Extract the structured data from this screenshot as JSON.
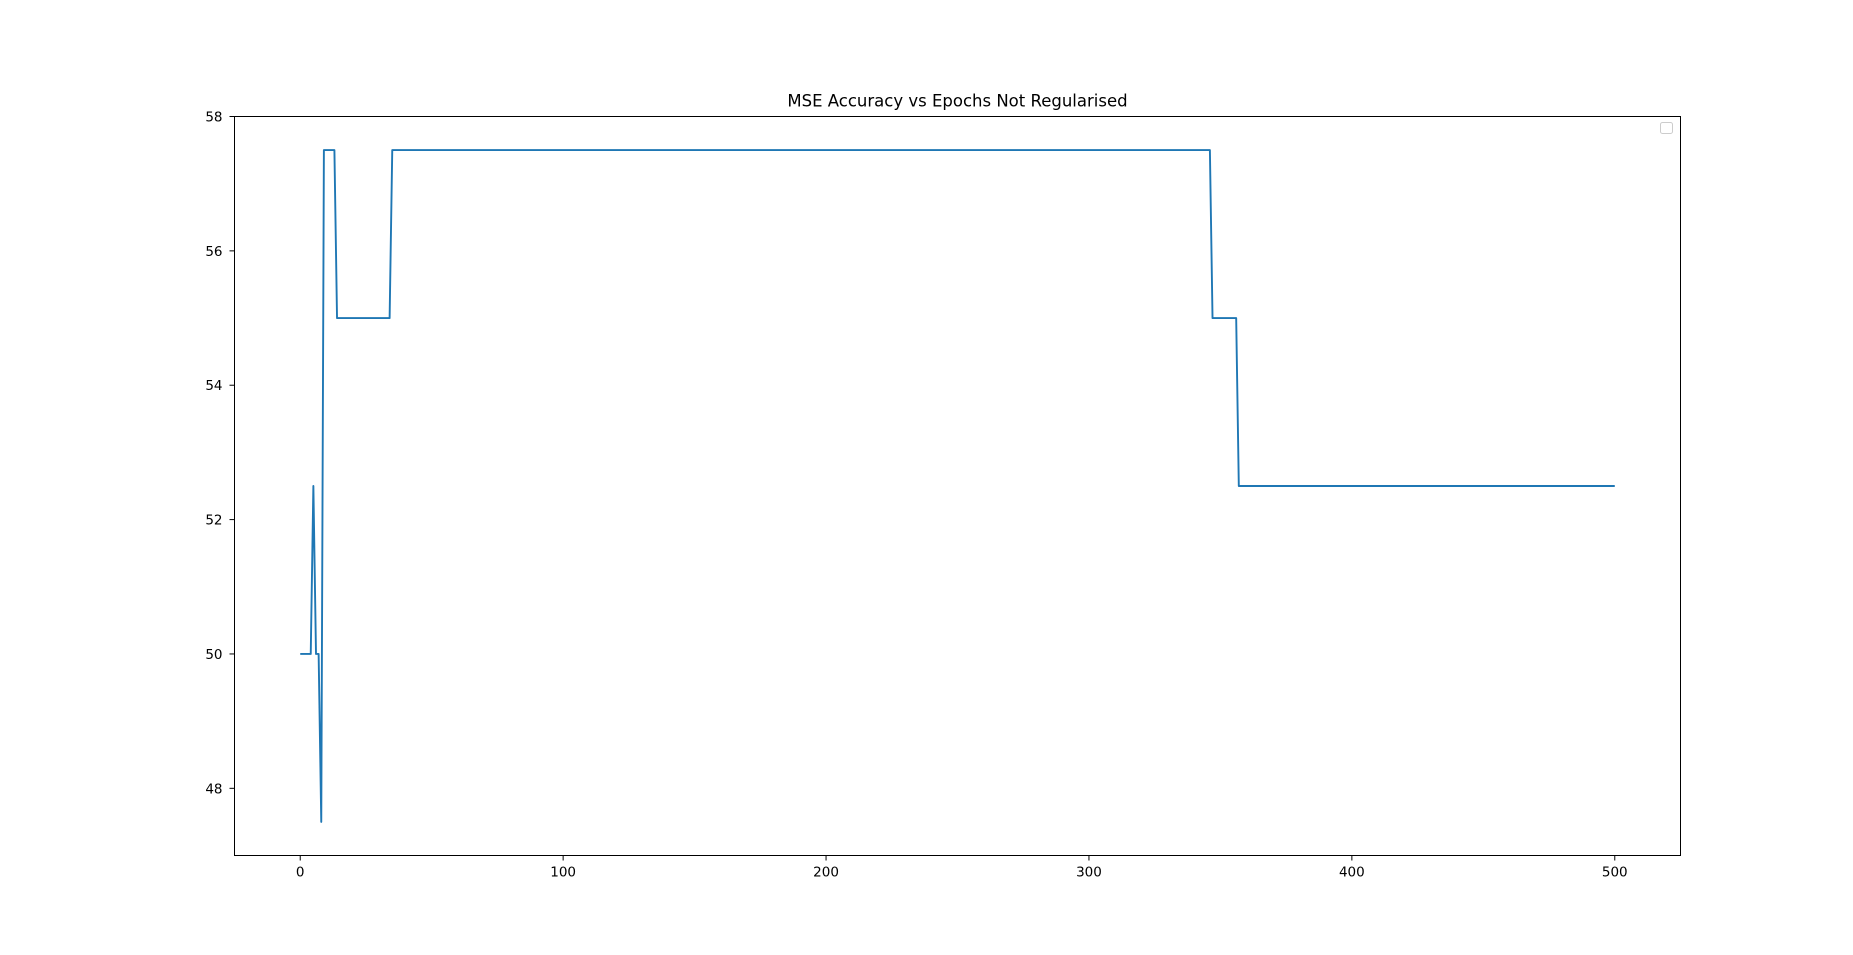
{
  "chart_data": {
    "type": "line",
    "title": "MSE Accuracy vs Epochs Not Regularised",
    "xlabel": "",
    "ylabel": "",
    "xlim": [
      -25,
      525
    ],
    "ylim": [
      47,
      58
    ],
    "x_ticks": [
      0,
      100,
      200,
      300,
      400,
      500
    ],
    "y_ticks": [
      48,
      50,
      52,
      54,
      56,
      58
    ],
    "grid": false,
    "legend": {
      "placement": "top-right",
      "entries": []
    },
    "line_color": "#1f77b4",
    "series": [
      {
        "x": [
          0,
          1,
          2,
          3,
          4,
          5,
          6,
          7,
          8,
          9,
          10,
          11,
          12,
          13,
          14,
          15,
          33,
          34,
          35,
          36,
          345,
          346,
          347,
          348,
          355,
          356,
          357,
          358,
          500
        ],
        "values": [
          50,
          50,
          50,
          50,
          50,
          52.5,
          50,
          50,
          47.5,
          57.5,
          57.5,
          57.5,
          57.5,
          57.5,
          55,
          55,
          55,
          55,
          57.5,
          57.5,
          57.5,
          57.5,
          55,
          55,
          55,
          55,
          52.5,
          52.5,
          52.5
        ]
      }
    ]
  }
}
